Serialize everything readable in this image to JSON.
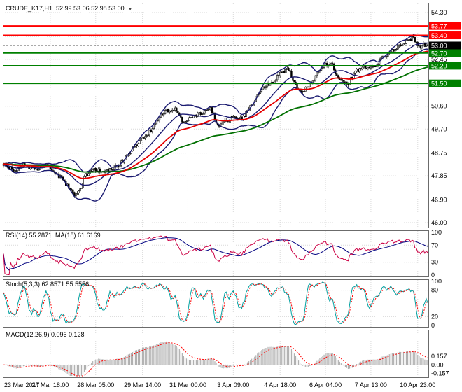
{
  "main": {
    "title_symbol": "CRUDE_K17,H1",
    "title_ohlc": "52.99 53.06 52.98 53.00"
  },
  "chart_data": {
    "type": "candlestick",
    "symbol": "CRUDE_K17",
    "timeframe": "H1",
    "title": "CRUDE_K17,H1 52.99 53.06 52.98 53.00",
    "last_ohlc": {
      "open": 52.99,
      "high": 53.06,
      "low": 52.98,
      "close": 53.0
    },
    "y_range": [
      46.0,
      54.3
    ],
    "y_grid": [
      54.3,
      53.35,
      52.45,
      51.5,
      50.6,
      49.7,
      48.75,
      47.85,
      46.9,
      46.0
    ],
    "y_ticks": [
      54.3,
      52.45,
      50.6,
      49.7,
      48.75,
      47.85,
      46.9,
      46.0
    ],
    "levels": [
      {
        "price": 53.77,
        "color": "#ff0000",
        "width": 2,
        "kind": "resistance"
      },
      {
        "price": 53.4,
        "color": "#ff0000",
        "width": 2,
        "kind": "resistance"
      },
      {
        "price": 52.7,
        "color": "#008000",
        "width": 1.8,
        "kind": "support"
      },
      {
        "price": 52.2,
        "color": "#008000",
        "width": 1.8,
        "kind": "support"
      },
      {
        "price": 51.5,
        "color": "#008000",
        "width": 1.8,
        "kind": "support"
      }
    ],
    "current_price": 53.0,
    "current_price_color": "#000000",
    "candle_up_fill": "#ffffff",
    "candle_down_fill": "#000000",
    "candle_border": "#000000",
    "x_labels": [
      {
        "index": 0,
        "label": "23 Mar 2017"
      },
      {
        "index": 33,
        "label": "24 Mar 18:00"
      },
      {
        "index": 65,
        "label": "28 Mar 05:00"
      },
      {
        "index": 98,
        "label": "29 Mar 14:00"
      },
      {
        "index": 130,
        "label": "31 Mar 00:00"
      },
      {
        "index": 162,
        "label": "3 Apr 09:00"
      },
      {
        "index": 195,
        "label": "4 Apr 18:00"
      },
      {
        "index": 227,
        "label": "6 Apr 04:00"
      },
      {
        "index": 259,
        "label": "7 Apr 13:00"
      },
      {
        "index": 292,
        "label": "10 Apr 23:00"
      }
    ],
    "num_candles": 300,
    "price_path_anchors": [
      [
        0,
        48.3
      ],
      [
        8,
        48.05
      ],
      [
        14,
        48.3
      ],
      [
        22,
        48.1
      ],
      [
        30,
        48.28
      ],
      [
        38,
        47.9
      ],
      [
        44,
        47.55
      ],
      [
        50,
        47.12
      ],
      [
        54,
        47.3
      ],
      [
        58,
        47.9
      ],
      [
        64,
        48.1
      ],
      [
        72,
        48.0
      ],
      [
        80,
        48.22
      ],
      [
        86,
        48.55
      ],
      [
        92,
        49.0
      ],
      [
        98,
        49.3
      ],
      [
        104,
        49.65
      ],
      [
        109,
        50.1
      ],
      [
        114,
        50.4
      ],
      [
        121,
        50.5
      ],
      [
        127,
        49.95
      ],
      [
        133,
        50.2
      ],
      [
        139,
        50.32
      ],
      [
        146,
        50.55
      ],
      [
        151,
        49.85
      ],
      [
        157,
        50.05
      ],
      [
        163,
        50.22
      ],
      [
        168,
        50.1
      ],
      [
        173,
        50.5
      ],
      [
        178,
        50.9
      ],
      [
        184,
        51.4
      ],
      [
        190,
        51.55
      ],
      [
        196,
        51.95
      ],
      [
        201,
        52.05
      ],
      [
        207,
        51.3
      ],
      [
        212,
        51.22
      ],
      [
        219,
        51.7
      ],
      [
        225,
        52.2
      ],
      [
        231,
        52.3
      ],
      [
        237,
        51.6
      ],
      [
        243,
        51.52
      ],
      [
        249,
        52.0
      ],
      [
        255,
        52.15
      ],
      [
        261,
        52.1
      ],
      [
        267,
        52.5
      ],
      [
        273,
        52.75
      ],
      [
        279,
        53.0
      ],
      [
        285,
        53.2
      ],
      [
        289,
        53.3
      ],
      [
        293,
        52.95
      ],
      [
        296,
        53.05
      ],
      [
        299,
        53.0
      ]
    ],
    "overlays": {
      "bollinger": {
        "period": 20,
        "deviation": 2,
        "color": "#191970"
      },
      "ma_fast": {
        "period": 45,
        "color": "#e60000"
      },
      "ma_slow": {
        "period": 110,
        "color": "#007000"
      }
    },
    "indicators": {
      "rsi": {
        "label": "RSI(14) 55.2871",
        "ma_label": "MA(18) 61.6169",
        "period": 14,
        "ma_period": 18,
        "value": 55.2871,
        "ma_value": 61.6169,
        "ticks": [
          100,
          70,
          30,
          0
        ],
        "level_lines": [
          70,
          30
        ],
        "color": "#cc0044",
        "ma_color": "#000080"
      },
      "stoch": {
        "label": "Stoch(5,3,3) 62.8571 55.5556",
        "k_period": 5,
        "slowing": 3,
        "d_period": 3,
        "k_value": 62.8571,
        "d_value": 55.5556,
        "ticks": [
          100,
          80,
          20,
          0
        ],
        "level_lines": [
          80,
          20
        ],
        "k_color": "#00a0a0",
        "d_color": "#ff0000"
      },
      "macd": {
        "label": "MACD(12,26,9) 0.096 0.128",
        "fast": 12,
        "slow": 26,
        "signal": 9,
        "value": 0.096,
        "signal_value": 0.128,
        "ticks": [
          {
            "v": 0.157,
            "label": "0.157"
          },
          {
            "v": 0,
            "label": "0.00"
          },
          {
            "v": -0.157,
            "label": "-0.157"
          }
        ],
        "range": [
          -0.2,
          0.6
        ],
        "hist_color": "#b0b0b0",
        "signal_color": "#ff0000"
      }
    }
  }
}
